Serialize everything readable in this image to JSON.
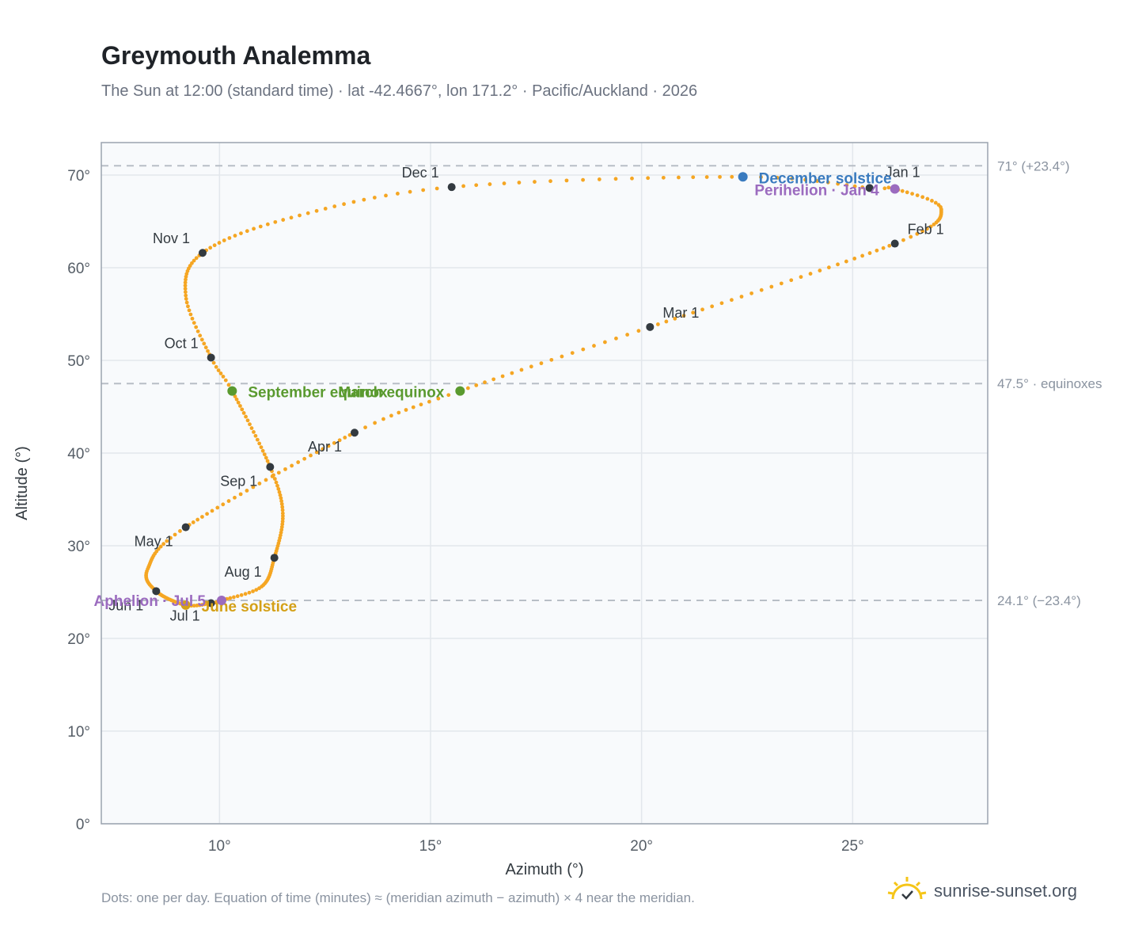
{
  "header": {
    "title": "Greymouth Analemma",
    "subtitle": "The Sun at 12:00 (standard time) · lat -42.4667°, lon 171.2° · Pacific/Auckland · 2026"
  },
  "footer": {
    "note": "Dots: one per day. Equation of time (minutes) ≈ (meridian azimuth − azimuth) × 4 near the meridian.",
    "brand": "sunrise-sunset.org"
  },
  "colors": {
    "path": "#f5a623",
    "month_marker": "#333a40",
    "equinox": "#5a9a2f",
    "december_solstice": "#3a7bbf",
    "june_solstice": "#d4a017",
    "apsis": "#9b6bbf",
    "reference_line": "#b8bec6",
    "plot_bg": "#f8fafc",
    "grid": "#e3e7ec"
  },
  "chart_data": {
    "type": "scatter",
    "title": "Greymouth Analemma",
    "xlabel": "Azimuth (°)",
    "ylabel": "Altitude (°)",
    "xlim": [
      7.2,
      28.2
    ],
    "ylim": [
      0,
      73.5
    ],
    "x_ticks": [
      10,
      15,
      20,
      25
    ],
    "x_tick_labels": [
      "10°",
      "15°",
      "20°",
      "25°"
    ],
    "y_ticks": [
      0,
      10,
      20,
      30,
      40,
      50,
      60,
      70
    ],
    "y_tick_labels": [
      "0°",
      "10°",
      "20°",
      "30°",
      "40°",
      "50°",
      "60°",
      "70°"
    ],
    "grid": true,
    "path_keypoints": [
      {
        "doy": 1,
        "az": 25.4,
        "alt": 68.6
      },
      {
        "doy": 4,
        "az": 26.0,
        "alt": 68.5
      },
      {
        "doy": 16,
        "az": 27.1,
        "alt": 66.3
      },
      {
        "doy": 32,
        "az": 26.0,
        "alt": 62.6
      },
      {
        "doy": 60,
        "az": 20.2,
        "alt": 53.6
      },
      {
        "doy": 79,
        "az": 15.7,
        "alt": 46.7
      },
      {
        "doy": 91,
        "az": 13.2,
        "alt": 42.2
      },
      {
        "doy": 121,
        "az": 9.2,
        "alt": 32.0
      },
      {
        "doy": 138,
        "az": 8.3,
        "alt": 27.5
      },
      {
        "doy": 152,
        "az": 8.5,
        "alt": 25.1
      },
      {
        "doy": 172,
        "az": 9.2,
        "alt": 23.6
      },
      {
        "doy": 182,
        "az": 9.8,
        "alt": 23.8
      },
      {
        "doy": 186,
        "az": 10.05,
        "alt": 24.1
      },
      {
        "doy": 198,
        "az": 11.0,
        "alt": 25.6
      },
      {
        "doy": 213,
        "az": 11.3,
        "alt": 28.7
      },
      {
        "doy": 230,
        "az": 11.5,
        "alt": 33.5
      },
      {
        "doy": 244,
        "az": 11.2,
        "alt": 38.5
      },
      {
        "doy": 266,
        "az": 10.3,
        "alt": 46.7
      },
      {
        "doy": 274,
        "az": 9.8,
        "alt": 50.3
      },
      {
        "doy": 290,
        "az": 9.2,
        "alt": 57.0
      },
      {
        "doy": 305,
        "az": 9.6,
        "alt": 61.6
      },
      {
        "doy": 320,
        "az": 11.7,
        "alt": 65.4
      },
      {
        "doy": 335,
        "az": 15.5,
        "alt": 68.7
      },
      {
        "doy": 355,
        "az": 22.4,
        "alt": 69.8
      },
      {
        "doy": 366,
        "az": 25.4,
        "alt": 68.6
      }
    ],
    "month_markers": [
      {
        "label": "Jan 1",
        "az": 25.4,
        "alt": 68.6
      },
      {
        "label": "Feb 1",
        "az": 26.0,
        "alt": 62.6
      },
      {
        "label": "Mar 1",
        "az": 20.2,
        "alt": 53.6
      },
      {
        "label": "Apr 1",
        "az": 13.2,
        "alt": 42.2
      },
      {
        "label": "May 1",
        "az": 9.2,
        "alt": 32.0
      },
      {
        "label": "Jun 1",
        "az": 8.5,
        "alt": 25.1
      },
      {
        "label": "Jul 1",
        "az": 9.8,
        "alt": 23.8
      },
      {
        "label": "Aug 1",
        "az": 11.3,
        "alt": 28.7
      },
      {
        "label": "Sep 1",
        "az": 11.2,
        "alt": 38.5
      },
      {
        "label": "Oct 1",
        "az": 9.8,
        "alt": 50.3
      },
      {
        "label": "Nov 1",
        "az": 9.6,
        "alt": 61.6
      },
      {
        "label": "Dec 1",
        "az": 15.5,
        "alt": 68.7
      }
    ],
    "events": [
      {
        "label": "December solstice",
        "az": 22.4,
        "alt": 69.8,
        "color_key": "december_solstice"
      },
      {
        "label": "Perihelion · Jan 4",
        "az": 26.0,
        "alt": 68.5,
        "color_key": "apsis"
      },
      {
        "label": "March equinox",
        "az": 15.7,
        "alt": 46.7,
        "color_key": "equinox"
      },
      {
        "label": "September equinox",
        "az": 10.3,
        "alt": 46.7,
        "color_key": "equinox"
      },
      {
        "label": "June solstice",
        "az": 9.2,
        "alt": 23.6,
        "color_key": "june_solstice"
      },
      {
        "label": "Aphelion · Jul 5",
        "az": 10.05,
        "alt": 24.1,
        "color_key": "apsis"
      }
    ],
    "reference_lines": [
      {
        "alt": 71.0,
        "label": "71° (+23.4°)"
      },
      {
        "alt": 47.5,
        "label": "47.5° · equinoxes"
      },
      {
        "alt": 24.1,
        "label": "24.1° (−23.4°)"
      }
    ]
  }
}
